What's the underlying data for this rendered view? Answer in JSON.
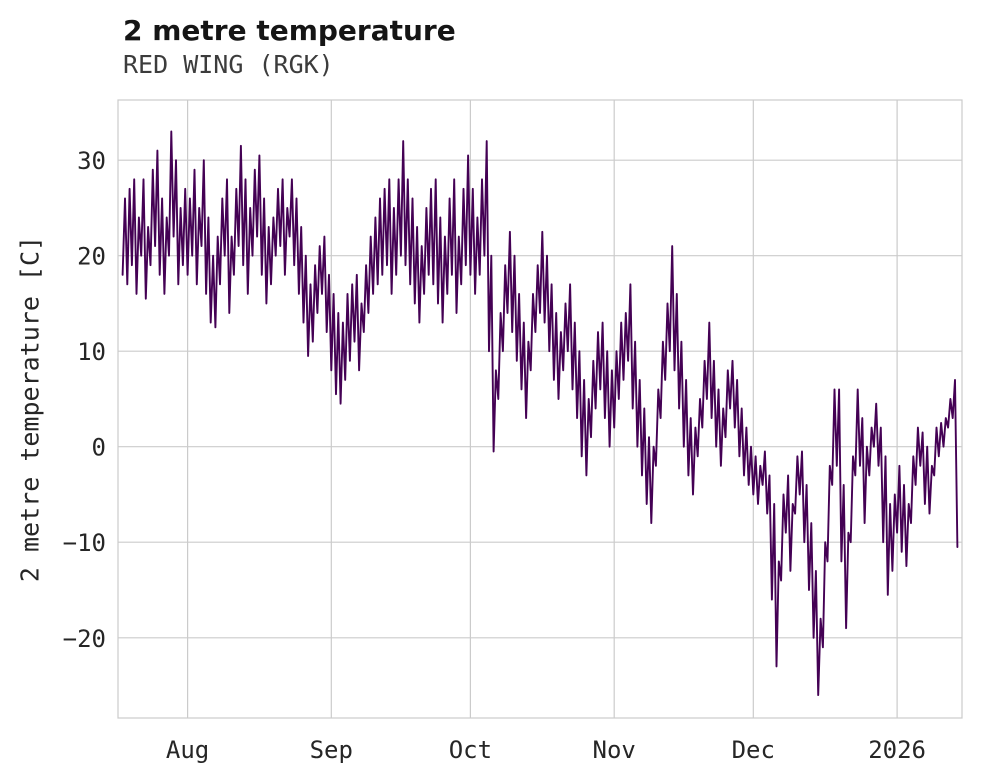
{
  "chart_data": {
    "type": "line",
    "title": "2 metre temperature",
    "subtitle": "RED WING (RGK)",
    "ylabel": "2 metre temperature [C]",
    "xlabel": "",
    "legend": "none",
    "grid": "on",
    "line_color": "#440154",
    "grid_color": "#cbcbcb",
    "ylim": [
      -28.4,
      36.3
    ],
    "yticks": [
      -20,
      -10,
      0,
      10,
      20,
      30
    ],
    "xticks": [
      {
        "label": "Aug",
        "day": 14
      },
      {
        "label": "Sep",
        "day": 45
      },
      {
        "label": "Oct",
        "day": 75
      },
      {
        "label": "Nov",
        "day": 106
      },
      {
        "label": "Dec",
        "day": 136
      },
      {
        "label": "2026",
        "day": 167
      }
    ],
    "x_description": "time from late July 2025 to mid January 2026, day 0 = approx Jul 18",
    "xlim_days": [
      -1,
      181
    ],
    "x_start_day": 0,
    "x_step_days": 0.5,
    "values": [
      18,
      26,
      17,
      27,
      19,
      28,
      16,
      24,
      20,
      28,
      15.5,
      23,
      19,
      29,
      21,
      31,
      18,
      26,
      16,
      24,
      20,
      33,
      22,
      30,
      17,
      25,
      19,
      27,
      18,
      26,
      20,
      29,
      17,
      25,
      21,
      30,
      16,
      24,
      13,
      20,
      12.5,
      22,
      17,
      26,
      20,
      28,
      14,
      22,
      18,
      27,
      21,
      31.5,
      19,
      28,
      16,
      25,
      20,
      29,
      22,
      30.5,
      18,
      26,
      15,
      23,
      17,
      24,
      20,
      27,
      21,
      28,
      18,
      25,
      22,
      28,
      19,
      26,
      16,
      23,
      13,
      20,
      9.5,
      17,
      11,
      19,
      14,
      21,
      16,
      22,
      12,
      18,
      8,
      16,
      5.5,
      14,
      4.5,
      13,
      7,
      16,
      9,
      17,
      11,
      18,
      8,
      15,
      12,
      19,
      14,
      22,
      16,
      24,
      17,
      26,
      18,
      27,
      19,
      28,
      16,
      25,
      18,
      28,
      20,
      32,
      19,
      28,
      17,
      26,
      15,
      23,
      13,
      21,
      16,
      25,
      18,
      27,
      17,
      28,
      15,
      24,
      13,
      22,
      16,
      26,
      18,
      28,
      14,
      22,
      17,
      27,
      19,
      30.5,
      18,
      27,
      16,
      24,
      18,
      28,
      20,
      32,
      10,
      20,
      -0.5,
      8,
      5,
      14,
      10,
      19,
      14,
      22.5,
      12,
      20,
      9,
      16,
      6,
      13,
      3,
      11,
      8,
      16,
      12,
      19,
      14,
      22.5,
      13,
      20,
      10,
      17,
      7,
      14,
      5,
      12,
      8,
      15,
      10,
      17,
      6,
      13,
      3,
      10,
      -1,
      7,
      -3,
      5,
      1,
      9,
      4,
      12,
      6,
      13,
      3,
      10,
      0,
      8,
      2,
      10,
      5,
      13,
      7,
      14,
      9,
      17,
      4,
      11,
      0,
      7,
      -3,
      4,
      -6,
      1,
      -8,
      0,
      -2,
      6,
      3,
      11,
      7,
      15,
      10,
      21,
      8,
      16,
      4,
      11,
      0,
      7,
      -3,
      3,
      -5,
      2,
      -1,
      5,
      2,
      9,
      5,
      13,
      3,
      9,
      0,
      6,
      -2,
      4,
      1,
      8,
      4,
      9,
      2,
      7,
      -1,
      4,
      -3,
      2,
      -4,
      0,
      -5,
      -1,
      -6,
      -2,
      -4,
      -0.5,
      -7,
      -3,
      -16,
      -6,
      -23,
      -12,
      -14,
      -5,
      -9,
      -3,
      -13,
      -6,
      -7,
      -1,
      -5,
      -0.5,
      -10,
      -4,
      -15,
      -8,
      -20,
      -13,
      -26,
      -18,
      -21,
      -10,
      -12,
      -2,
      -4,
      6,
      -2,
      6,
      -12,
      -4,
      -19,
      -9,
      -10,
      -1,
      -3,
      6,
      -2,
      3,
      -8,
      0,
      -3,
      2,
      0,
      4.5,
      -2,
      2,
      -10,
      -1,
      -15.5,
      -6,
      -13,
      -5,
      -9,
      -2,
      -11,
      -4,
      -12.5,
      -6,
      -8,
      -1,
      -4,
      2,
      -2,
      1.5,
      -6,
      0,
      -7,
      -2,
      -3,
      2,
      -1,
      2.5,
      0,
      3,
      2,
      5,
      3,
      7,
      -10.5
    ]
  }
}
